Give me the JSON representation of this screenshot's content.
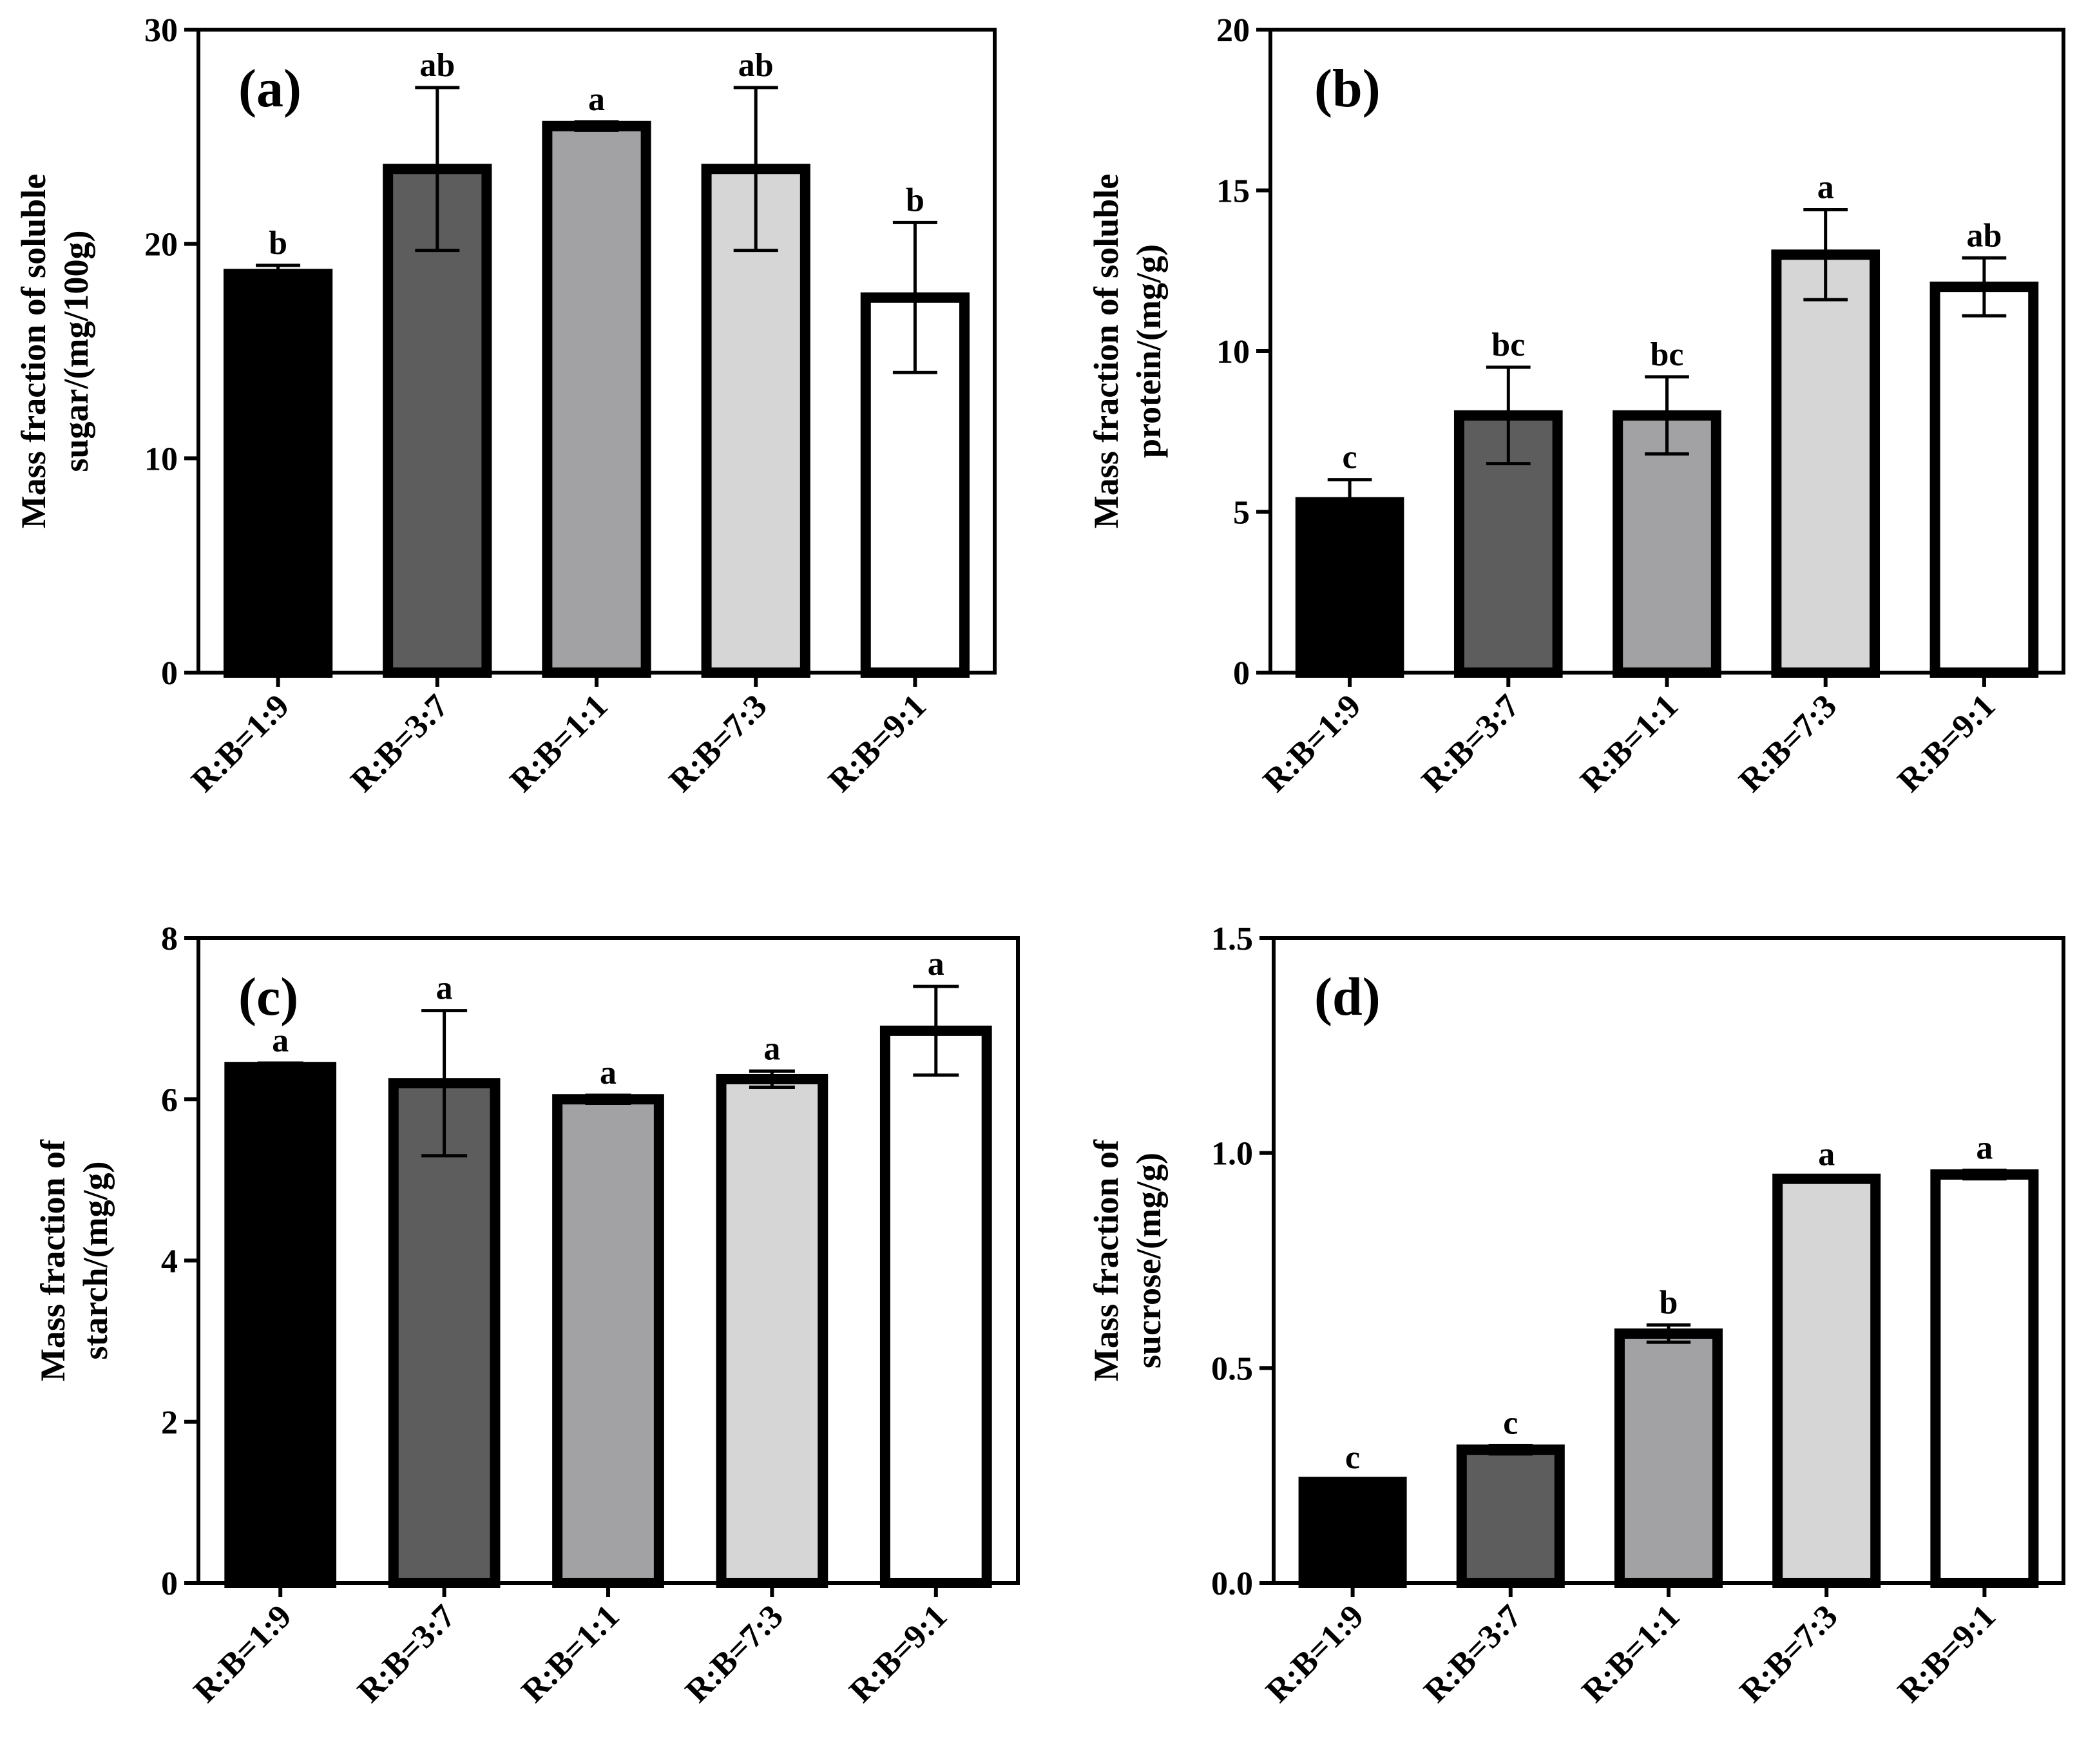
{
  "chart_data": [
    {
      "type": "bar",
      "panel_label": "(a)",
      "ylabel": [
        "Mass fraction of soluble",
        "sugar/(mg/100g)"
      ],
      "categories": [
        "R:B=1:9",
        "R:B=3:7",
        "R:B=1:1",
        "R:B=7:3",
        "R:B=9:1"
      ],
      "values": [
        18.6,
        23.5,
        25.5,
        23.5,
        17.5
      ],
      "errors": [
        0.4,
        3.8,
        0.2,
        3.8,
        3.5
      ],
      "significance": [
        "b",
        "ab",
        "a",
        "ab",
        "b"
      ],
      "ylim": [
        0,
        30
      ],
      "yticks": [
        "0",
        "10",
        "20",
        "30"
      ]
    },
    {
      "type": "bar",
      "panel_label": "(b)",
      "ylabel": [
        "Mass fraction of soluble",
        "protein/(mg/g)"
      ],
      "categories": [
        "R:B=1:9",
        "R:B=3:7",
        "R:B=1:1",
        "R:B=7:3",
        "R:B=9:1"
      ],
      "values": [
        5.3,
        8.0,
        8.0,
        13.0,
        12.0
      ],
      "errors": [
        0.7,
        1.5,
        1.2,
        1.4,
        0.9
      ],
      "significance": [
        "c",
        "bc",
        "bc",
        "a",
        "ab"
      ],
      "ylim": [
        0,
        20
      ],
      "yticks": [
        "0",
        "5",
        "10",
        "15",
        "20"
      ]
    },
    {
      "type": "bar",
      "panel_label": "(c)",
      "ylabel": [
        "Mass fraction of",
        "starch/(mg/g)"
      ],
      "categories": [
        "R:B=1:9",
        "R:B=3:7",
        "R:B=1:1",
        "R:B=7:3",
        "R:B=9:1"
      ],
      "values": [
        6.4,
        6.2,
        6.0,
        6.25,
        6.85
      ],
      "errors": [
        0.05,
        0.9,
        0.05,
        0.1,
        0.55
      ],
      "significance": [
        "a",
        "a",
        "a",
        "a",
        "a"
      ],
      "ylim": [
        0,
        8
      ],
      "yticks": [
        "0",
        "2",
        "4",
        "6",
        "8"
      ]
    },
    {
      "type": "bar",
      "panel_label": "(d)",
      "ylabel": [
        "Mass fraction of",
        "sucrose/(mg/g)"
      ],
      "categories": [
        "R:B=1:9",
        "R:B=3:7",
        "R:B=1:1",
        "R:B=7:3",
        "R:B=9:1"
      ],
      "values": [
        0.235,
        0.31,
        0.58,
        0.94,
        0.95
      ],
      "errors": [
        0.005,
        0.01,
        0.02,
        0.005,
        0.01
      ],
      "significance": [
        "c",
        "c",
        "b",
        "a",
        "a"
      ],
      "ylim": [
        0,
        1.5
      ],
      "yticks": [
        "0.0",
        "0.5",
        "1.0",
        "1.5"
      ]
    }
  ],
  "colors": {
    "bar_fills": [
      "#000000",
      "#5d5d5d",
      "#a2a2a5",
      "#d6d6d6",
      "#ffffff"
    ],
    "stroke": "#000000"
  }
}
